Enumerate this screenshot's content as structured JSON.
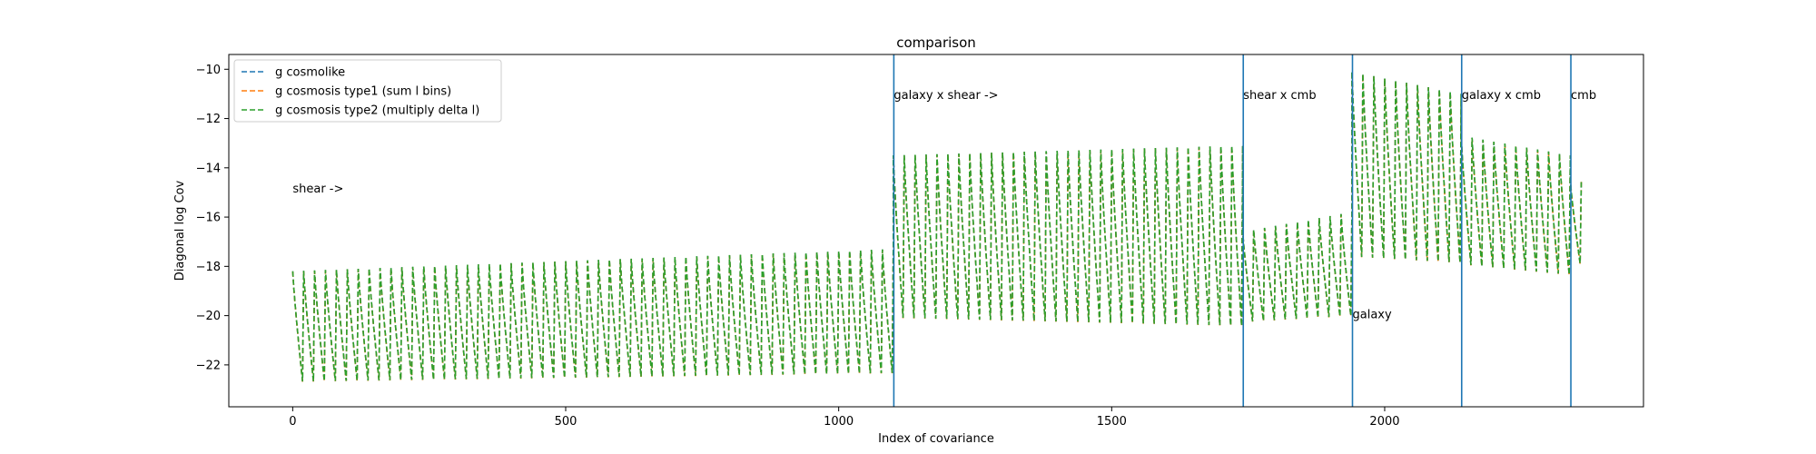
{
  "chart_data": {
    "type": "line",
    "title": "comparison",
    "xlabel": "Index of covariance",
    "ylabel": "Diagonal log Cov",
    "xlim": [
      -117,
      2474
    ],
    "ylim": [
      -23.7,
      -9.4
    ],
    "xticks": [
      0,
      500,
      1000,
      1500,
      2000
    ],
    "yticks": [
      -22,
      -20,
      -18,
      -16,
      -14,
      -12,
      -10
    ],
    "grid": false,
    "legend_position": "top-left",
    "series": [
      {
        "name": "g cosmolike",
        "color": "#1f77b4",
        "style": "dashed"
      },
      {
        "name": "g cosmosis type1 (sum l bins)",
        "color": "#ff7f0e",
        "style": "dashed"
      },
      {
        "name": "g cosmosis type2 (multiply delta l)",
        "color": "#2ca02c",
        "style": "dashed"
      }
    ],
    "segments": [
      {
        "start": 0,
        "end": 1100,
        "top_start": -18.2,
        "top_end": -17.3,
        "bottom_start": -23.1,
        "bottom_end": -22.8,
        "period": 20
      },
      {
        "start": 1100,
        "end": 1740,
        "top_start": -13.5,
        "top_end": -13.1,
        "bottom_start": -20.7,
        "bottom_end": -21.1,
        "period": 20
      },
      {
        "start": 1740,
        "end": 1940,
        "top_start": -16.6,
        "top_end": -15.8,
        "bottom_start": -20.6,
        "bottom_end": -20.4,
        "period": 20
      },
      {
        "start": 1940,
        "end": 2140,
        "top_start": -10.1,
        "top_end": -11.0,
        "bottom_start": -18.3,
        "bottom_end": -18.5,
        "period": 20
      },
      {
        "start": 2140,
        "end": 2340,
        "top_start": -12.7,
        "top_end": -13.5,
        "bottom_start": -18.4,
        "bottom_end": -18.8,
        "period": 20
      },
      {
        "start": 2340,
        "end": 2360,
        "top_start": -14.5,
        "top_end": -14.5,
        "bottom_start": -18.2,
        "bottom_end": -18.2,
        "period": 20
      }
    ],
    "vlines": [
      1101,
      1741,
      1941,
      2141,
      2341
    ],
    "annotations": [
      {
        "text": "shear ->",
        "x": 0,
        "y": -15
      },
      {
        "text": "galaxy x shear ->",
        "x": 1101,
        "y": -11.2
      },
      {
        "text": "shear x cmb",
        "x": 1741,
        "y": -11.2
      },
      {
        "text": "galaxy",
        "x": 1941,
        "y": -20.1
      },
      {
        "text": "galaxy x cmb",
        "x": 2141,
        "y": -11.2
      },
      {
        "text": "cmb",
        "x": 2341,
        "y": -11.2
      }
    ]
  }
}
